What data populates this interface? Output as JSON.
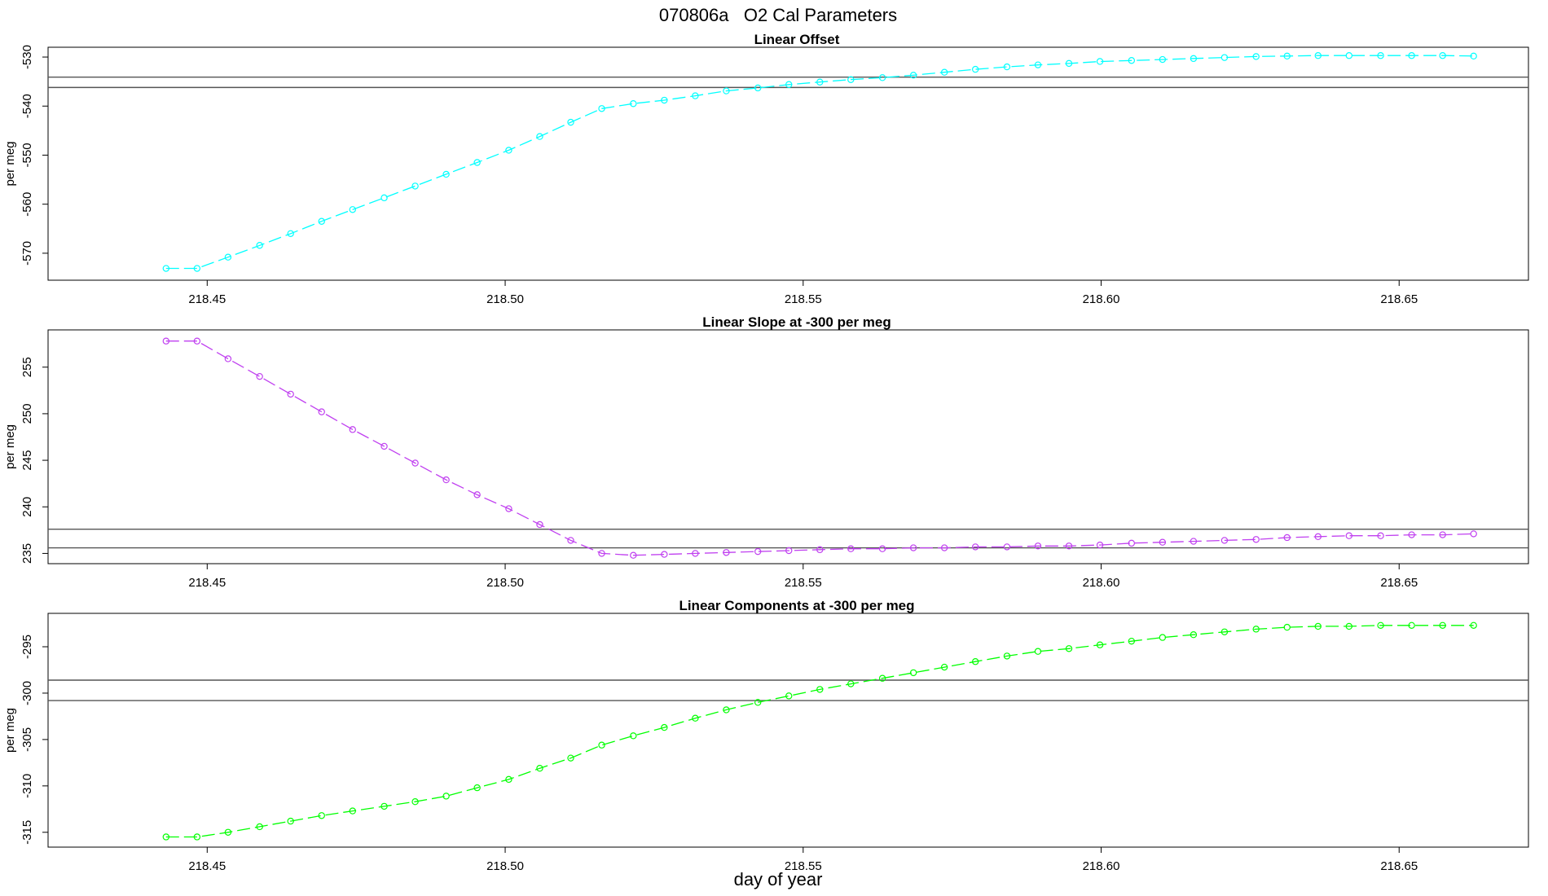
{
  "figure": {
    "title": "070806a   O2 Cal Parameters",
    "xlabel": "day of year"
  },
  "chart_data": [
    {
      "type": "line",
      "title": "Linear Offset",
      "xlabel": "",
      "ylabel": "per meg",
      "xlim": [
        218.4233,
        218.6717
      ],
      "ylim": [
        -575.5,
        -528.0
      ],
      "xticks": [
        "218.45",
        "218.50",
        "218.55",
        "218.60",
        "218.65"
      ],
      "xtick_values": [
        218.45,
        218.5,
        218.55,
        218.6,
        218.65
      ],
      "yticks": [
        "-570",
        "-560",
        "-550",
        "-540",
        "-530"
      ],
      "ytick_values": [
        -570,
        -560,
        -550,
        -540,
        -530
      ],
      "reference_lines": [
        -534.1,
        -536.2
      ],
      "grid": false,
      "series": [
        {
          "color": "#00ffff",
          "marker": "open-circle",
          "line_style": "dashed",
          "x": [
            218.4431,
            218.4483,
            218.4535,
            218.4588,
            218.464,
            218.4692,
            218.4744,
            218.4797,
            218.4849,
            218.4901,
            218.4953,
            218.5006,
            218.5058,
            218.511,
            218.5162,
            218.5215,
            218.5267,
            218.5319,
            218.5371,
            218.5424,
            218.5476,
            218.5528,
            218.558,
            218.5633,
            218.5685,
            218.5737,
            218.5789,
            218.5842,
            218.5894,
            218.5946,
            218.5998,
            218.6051,
            218.6103,
            218.6155,
            218.6207,
            218.626,
            218.6312,
            218.6364,
            218.6416,
            218.6469,
            218.6521,
            218.6573,
            218.6625
          ],
          "y": [
            -573.1,
            -573.1,
            -570.8,
            -568.4,
            -566.0,
            -563.5,
            -561.1,
            -558.7,
            -556.3,
            -553.9,
            -551.5,
            -549.0,
            -546.2,
            -543.3,
            -540.5,
            -539.5,
            -538.8,
            -537.9,
            -536.9,
            -536.3,
            -535.6,
            -535.1,
            -534.6,
            -534.2,
            -533.7,
            -533.1,
            -532.5,
            -532.0,
            -531.6,
            -531.3,
            -530.9,
            -530.7,
            -530.5,
            -530.3,
            -530.1,
            -529.9,
            -529.8,
            -529.7,
            -529.7,
            -529.7,
            -529.7,
            -529.7,
            -529.8
          ]
        }
      ]
    },
    {
      "type": "line",
      "title": "Linear Slope at -300 per meg",
      "xlabel": "",
      "ylabel": "per meg",
      "xlim": [
        218.4233,
        218.6717
      ],
      "ylim": [
        233.9,
        259.0
      ],
      "xticks": [
        "218.45",
        "218.50",
        "218.55",
        "218.60",
        "218.65"
      ],
      "xtick_values": [
        218.45,
        218.5,
        218.55,
        218.6,
        218.65
      ],
      "yticks": [
        "235",
        "240",
        "245",
        "250",
        "255"
      ],
      "ytick_values": [
        235,
        240,
        245,
        250,
        255
      ],
      "reference_lines": [
        237.6,
        235.6
      ],
      "grid": false,
      "series": [
        {
          "color": "#c040f0",
          "marker": "open-circle",
          "line_style": "dashed",
          "x": [
            218.4431,
            218.4483,
            218.4535,
            218.4588,
            218.464,
            218.4692,
            218.4744,
            218.4797,
            218.4849,
            218.4901,
            218.4953,
            218.5006,
            218.5058,
            218.511,
            218.5162,
            218.5215,
            218.5267,
            218.5319,
            218.5371,
            218.5424,
            218.5476,
            218.5528,
            218.558,
            218.5633,
            218.5685,
            218.5737,
            218.5789,
            218.5842,
            218.5894,
            218.5946,
            218.5998,
            218.6051,
            218.6103,
            218.6155,
            218.6207,
            218.626,
            218.6312,
            218.6364,
            218.6416,
            218.6469,
            218.6521,
            218.6573,
            218.6625
          ],
          "y": [
            257.8,
            257.8,
            255.9,
            254.0,
            252.1,
            250.2,
            248.3,
            246.5,
            244.7,
            242.9,
            241.3,
            239.8,
            238.1,
            236.4,
            235.0,
            234.8,
            234.9,
            235.0,
            235.1,
            235.2,
            235.3,
            235.4,
            235.5,
            235.5,
            235.6,
            235.6,
            235.7,
            235.7,
            235.8,
            235.8,
            235.9,
            236.1,
            236.2,
            236.3,
            236.4,
            236.5,
            236.7,
            236.8,
            236.9,
            236.9,
            237.0,
            237.0,
            237.1
          ]
        }
      ]
    },
    {
      "type": "line",
      "title": "Linear Components at -300 per meg",
      "xlabel": "",
      "ylabel": "per meg",
      "xlim": [
        218.4233,
        218.6717
      ],
      "ylim": [
        -316.6,
        -291.4
      ],
      "xticks": [
        "218.45",
        "218.50",
        "218.55",
        "218.60",
        "218.65"
      ],
      "xtick_values": [
        218.45,
        218.5,
        218.55,
        218.6,
        218.65
      ],
      "yticks": [
        "-315",
        "-310",
        "-305",
        "-300",
        "-295"
      ],
      "ytick_values": [
        -315,
        -310,
        -305,
        -300,
        -295
      ],
      "reference_lines": [
        -298.6,
        -300.8
      ],
      "grid": false,
      "series": [
        {
          "color": "#00ff00",
          "marker": "open-circle",
          "line_style": "dashed",
          "x": [
            218.4431,
            218.4483,
            218.4535,
            218.4588,
            218.464,
            218.4692,
            218.4744,
            218.4797,
            218.4849,
            218.4901,
            218.4953,
            218.5006,
            218.5058,
            218.511,
            218.5162,
            218.5215,
            218.5267,
            218.5319,
            218.5371,
            218.5424,
            218.5476,
            218.5528,
            218.558,
            218.5633,
            218.5685,
            218.5737,
            218.5789,
            218.5842,
            218.5894,
            218.5946,
            218.5998,
            218.6051,
            218.6103,
            218.6155,
            218.6207,
            218.626,
            218.6312,
            218.6364,
            218.6416,
            218.6469,
            218.6521,
            218.6573,
            218.6625
          ],
          "y": [
            -315.5,
            -315.5,
            -315.0,
            -314.4,
            -313.8,
            -313.2,
            -312.7,
            -312.2,
            -311.7,
            -311.1,
            -310.2,
            -309.3,
            -308.1,
            -307.0,
            -305.6,
            -304.6,
            -303.7,
            -302.7,
            -301.8,
            -301.0,
            -300.3,
            -299.6,
            -299.0,
            -298.4,
            -297.8,
            -297.2,
            -296.6,
            -296.0,
            -295.5,
            -295.2,
            -294.8,
            -294.4,
            -294.0,
            -293.7,
            -293.4,
            -293.1,
            -292.9,
            -292.8,
            -292.8,
            -292.7,
            -292.7,
            -292.7,
            -292.7
          ]
        }
      ]
    }
  ]
}
